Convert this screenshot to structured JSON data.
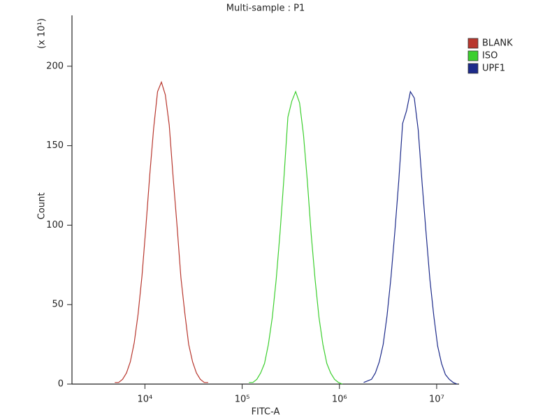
{
  "chart_data": {
    "type": "histogram-line",
    "title": "Multi-sample : P1",
    "xlabel": "FITC-A",
    "ylabel": "Count",
    "yunit": "(x 10¹)",
    "xscale": "log",
    "xlim": [
      1778,
      17000000
    ],
    "xticks": [
      {
        "value": 10000,
        "label": "10⁴"
      },
      {
        "value": 100000,
        "label": "10⁵"
      },
      {
        "value": 1000000,
        "label": "10⁶"
      },
      {
        "value": 10000000,
        "label": "10⁷"
      }
    ],
    "ylim": [
      0,
      232
    ],
    "yticks": [
      0,
      50,
      100,
      150,
      200
    ],
    "legend": "right",
    "series": [
      {
        "name": "BLANK",
        "color": "#b8372e",
        "x": [
          4898,
          5370,
          5888,
          6457,
          7079,
          7762,
          8511,
          9333,
          10230,
          11220,
          12300,
          13490,
          14790,
          16220,
          17780,
          19500,
          21380,
          23440,
          25700,
          28180,
          30900,
          33880,
          37150,
          40740,
          44670
        ],
        "values": [
          1,
          1,
          3,
          7,
          14,
          26,
          44,
          68,
          99,
          132,
          161,
          184,
          190,
          182,
          163,
          130,
          100,
          67,
          45,
          25,
          14,
          7,
          3,
          1,
          1
        ]
      },
      {
        "name": "ISO",
        "color": "#3ccf2e",
        "x": [
          117500,
          128800,
          141300,
          154900,
          169800,
          186200,
          204200,
          223900,
          245500,
          269200,
          295100,
          323600,
          354800,
          389000,
          426600,
          467700,
          512900,
          562300,
          616600,
          676100,
          741300,
          812800,
          891300,
          977200,
          1072000
        ],
        "values": [
          1,
          1,
          3,
          7,
          13,
          25,
          42,
          66,
          96,
          130,
          168,
          178,
          184,
          177,
          157,
          128,
          94,
          66,
          42,
          25,
          13,
          7,
          3,
          1,
          0
        ]
      },
      {
        "name": "UPF1",
        "color": "#1c2a8a",
        "x": [
          1778000,
          1950000,
          2138000,
          2344000,
          2570000,
          2818000,
          3090000,
          3388000,
          3715000,
          4074000,
          4467000,
          4898000,
          5370000,
          5888000,
          6457000,
          7079000,
          7762000,
          8511000,
          9333000,
          10230000,
          11220000,
          12300000,
          13490000,
          14790000,
          16220000
        ],
        "values": [
          1,
          2,
          3,
          7,
          14,
          25,
          43,
          67,
          96,
          128,
          164,
          172,
          184,
          180,
          160,
          127,
          96,
          66,
          43,
          24,
          13,
          6,
          3,
          1,
          0
        ]
      }
    ]
  }
}
